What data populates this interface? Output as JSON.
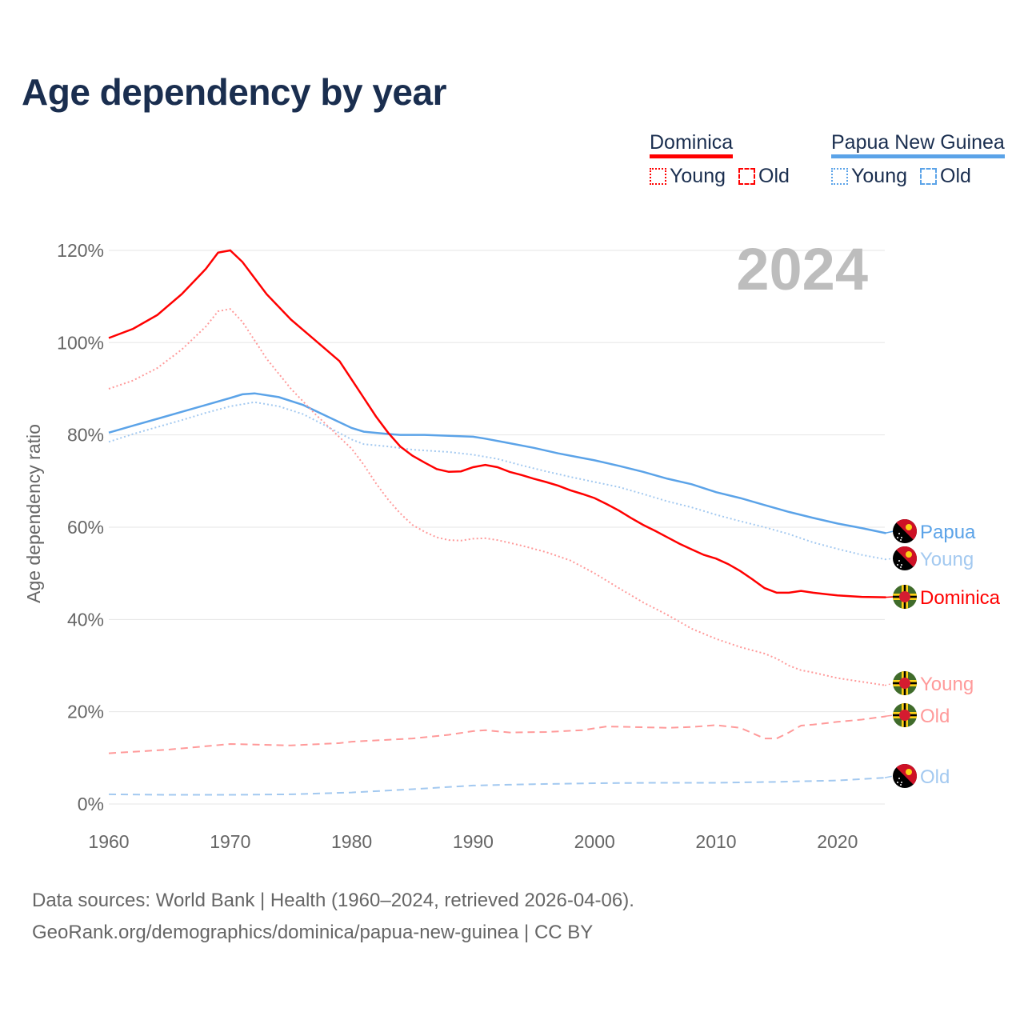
{
  "title": "Age dependency by year",
  "legend": {
    "groups": [
      {
        "name": "Dominica",
        "color": "#ff0000",
        "young_label": "Young",
        "old_label": "Old"
      },
      {
        "name": "Papua New Guinea",
        "color": "#5ba3e8",
        "young_label": "Young",
        "old_label": "Old"
      }
    ]
  },
  "source": {
    "line1": "Data sources: World Bank | Health (1960–2024, retrieved 2026-04-06).",
    "line2": "GeoRank.org/demographics/dominica/papua-new-guinea | CC BY"
  },
  "chart_data": {
    "type": "line",
    "title": "Age dependency by year",
    "xlabel": "",
    "ylabel": "Age dependency ratio",
    "xlim": [
      1960,
      2024
    ],
    "ylim": [
      0,
      120
    ],
    "x_ticks": [
      "1960",
      "1970",
      "1980",
      "1990",
      "2000",
      "2010",
      "2020"
    ],
    "y_ticks": [
      "0%",
      "20%",
      "40%",
      "60%",
      "80%",
      "100%",
      "120%"
    ],
    "year_watermark": "2024",
    "grid": true,
    "legend_position": "top-right",
    "series": [
      {
        "name": "Papua New Guinea",
        "end_label": "Papua",
        "flag": "papua-new-guinea",
        "style": "solid",
        "color": "#5ba3e8",
        "x": [
          1960,
          1962,
          1964,
          1966,
          1968,
          1970,
          1971,
          1972,
          1974,
          1976,
          1978,
          1980,
          1981,
          1983,
          1984,
          1986,
          1988,
          1990,
          1991,
          1993,
          1995,
          1997,
          1999,
          2000,
          2002,
          2004,
          2006,
          2008,
          2010,
          2012,
          2014,
          2016,
          2018,
          2020,
          2022,
          2024
        ],
        "values": [
          80.5,
          82,
          83.5,
          85,
          86.5,
          88,
          88.8,
          89,
          88.2,
          86.5,
          84,
          81.5,
          80.7,
          80.2,
          80,
          80,
          79.8,
          79.6,
          79.2,
          78.2,
          77.2,
          76,
          75,
          74.5,
          73.3,
          72,
          70.5,
          69.3,
          67.6,
          66.3,
          64.8,
          63.3,
          62,
          60.8,
          59.8,
          58.7
        ]
      },
      {
        "name": "Papua New Guinea Young",
        "end_label": "Young",
        "flag": "papua-new-guinea",
        "style": "dotted",
        "color": "#a3c9f0",
        "x": [
          1960,
          1962,
          1964,
          1966,
          1968,
          1970,
          1972,
          1974,
          1976,
          1978,
          1980,
          1981,
          1983,
          1985,
          1988,
          1990,
          1992,
          1994,
          1996,
          1998,
          2000,
          2002,
          2004,
          2006,
          2008,
          2010,
          2012,
          2014,
          2016,
          2018,
          2020,
          2022,
          2024
        ],
        "values": [
          78.5,
          80.2,
          81.7,
          83.2,
          84.8,
          86.2,
          87.1,
          86.2,
          84.5,
          81.8,
          79,
          78,
          77.5,
          76.8,
          76.3,
          75.7,
          74.8,
          73.4,
          72.1,
          70.9,
          69.8,
          68.7,
          67.2,
          65.6,
          64.3,
          62.7,
          61.3,
          60,
          58.5,
          56.7,
          55.3,
          54,
          53
        ]
      },
      {
        "name": "Dominica",
        "end_label": "Dominica",
        "flag": "dominica",
        "style": "solid",
        "color": "#ff0000",
        "x": [
          1960,
          1962,
          1964,
          1966,
          1968,
          1969,
          1970,
          1971,
          1972,
          1973,
          1975,
          1977,
          1979,
          1980,
          1981,
          1982,
          1983,
          1984,
          1985,
          1986,
          1987,
          1988,
          1989,
          1990,
          1991,
          1992,
          1993,
          1994,
          1995,
          1996,
          1997,
          1998,
          1999,
          2000,
          2001,
          2002,
          2003,
          2004,
          2005,
          2006,
          2007,
          2008,
          2009,
          2010,
          2011,
          2012,
          2013,
          2014,
          2015,
          2016,
          2017,
          2018,
          2019,
          2020,
          2022,
          2024
        ],
        "values": [
          101,
          103,
          106,
          110.5,
          116,
          119.5,
          120,
          117.5,
          114,
          110.5,
          105,
          100.5,
          96,
          92,
          88,
          84,
          80.5,
          77.5,
          75.5,
          74,
          72.6,
          72,
          72.1,
          73,
          73.5,
          73,
          72,
          71.3,
          70.5,
          69.8,
          69,
          68,
          67.2,
          66.3,
          65,
          63.6,
          62,
          60.5,
          59.2,
          57.8,
          56.4,
          55.2,
          54,
          53.2,
          52,
          50.5,
          48.7,
          46.8,
          45.8,
          45.8,
          46.2,
          45.8,
          45.5,
          45.2,
          44.9,
          44.8
        ]
      },
      {
        "name": "Dominica Young",
        "end_label": "Young",
        "flag": "dominica",
        "style": "dotted",
        "color": "#ff9a9a",
        "x": [
          1960,
          1962,
          1964,
          1966,
          1968,
          1969,
          1970,
          1971,
          1972,
          1973,
          1975,
          1977,
          1979,
          1980,
          1981,
          1982,
          1983,
          1984,
          1985,
          1986,
          1987,
          1988,
          1989,
          1990,
          1991,
          1992,
          1994,
          1996,
          1998,
          2000,
          2002,
          2004,
          2006,
          2008,
          2010,
          2012,
          2014,
          2015,
          2016,
          2017,
          2018,
          2020,
          2022,
          2024
        ],
        "values": [
          90,
          91.8,
          94.5,
          98.5,
          103.5,
          106.8,
          107.3,
          104.5,
          100.5,
          96.5,
          90,
          84.5,
          79.5,
          77,
          73.5,
          69.5,
          66,
          63,
          60.5,
          59,
          57.8,
          57.2,
          57.1,
          57.5,
          57.6,
          57.2,
          56,
          54.6,
          52.8,
          50,
          46.8,
          43.7,
          41,
          38,
          35.8,
          34,
          32.6,
          31.5,
          30,
          29,
          28.5,
          27.3,
          26.5,
          25.7
        ]
      },
      {
        "name": "Dominica Old",
        "end_label": "Old",
        "flag": "dominica",
        "style": "dashed",
        "color": "#ff9a9a",
        "x": [
          1960,
          1965,
          1970,
          1975,
          1979,
          1980,
          1985,
          1988,
          1990,
          1991,
          1993,
          1996,
          1999,
          2001,
          2003,
          2006,
          2008,
          2010,
          2012,
          2014,
          2015,
          2016,
          2017,
          2018,
          2020,
          2022,
          2024
        ],
        "values": [
          11,
          11.8,
          13,
          12.7,
          13.2,
          13.5,
          14.2,
          15,
          15.8,
          16,
          15.5,
          15.6,
          16,
          16.8,
          16.7,
          16.5,
          16.7,
          17.1,
          16.5,
          14.2,
          14.2,
          15.5,
          17,
          17.2,
          17.8,
          18.3,
          19
        ]
      },
      {
        "name": "Papua New Guinea Old",
        "end_label": "Old",
        "flag": "papua-new-guinea",
        "style": "dashed",
        "color": "#a3c9f0",
        "x": [
          1960,
          1965,
          1970,
          1975,
          1980,
          1985,
          1990,
          1995,
          2000,
          2005,
          2010,
          2015,
          2020,
          2024
        ],
        "values": [
          2.1,
          2.0,
          2.0,
          2.1,
          2.5,
          3.2,
          4.0,
          4.3,
          4.5,
          4.6,
          4.6,
          4.8,
          5.1,
          5.7
        ]
      }
    ]
  }
}
